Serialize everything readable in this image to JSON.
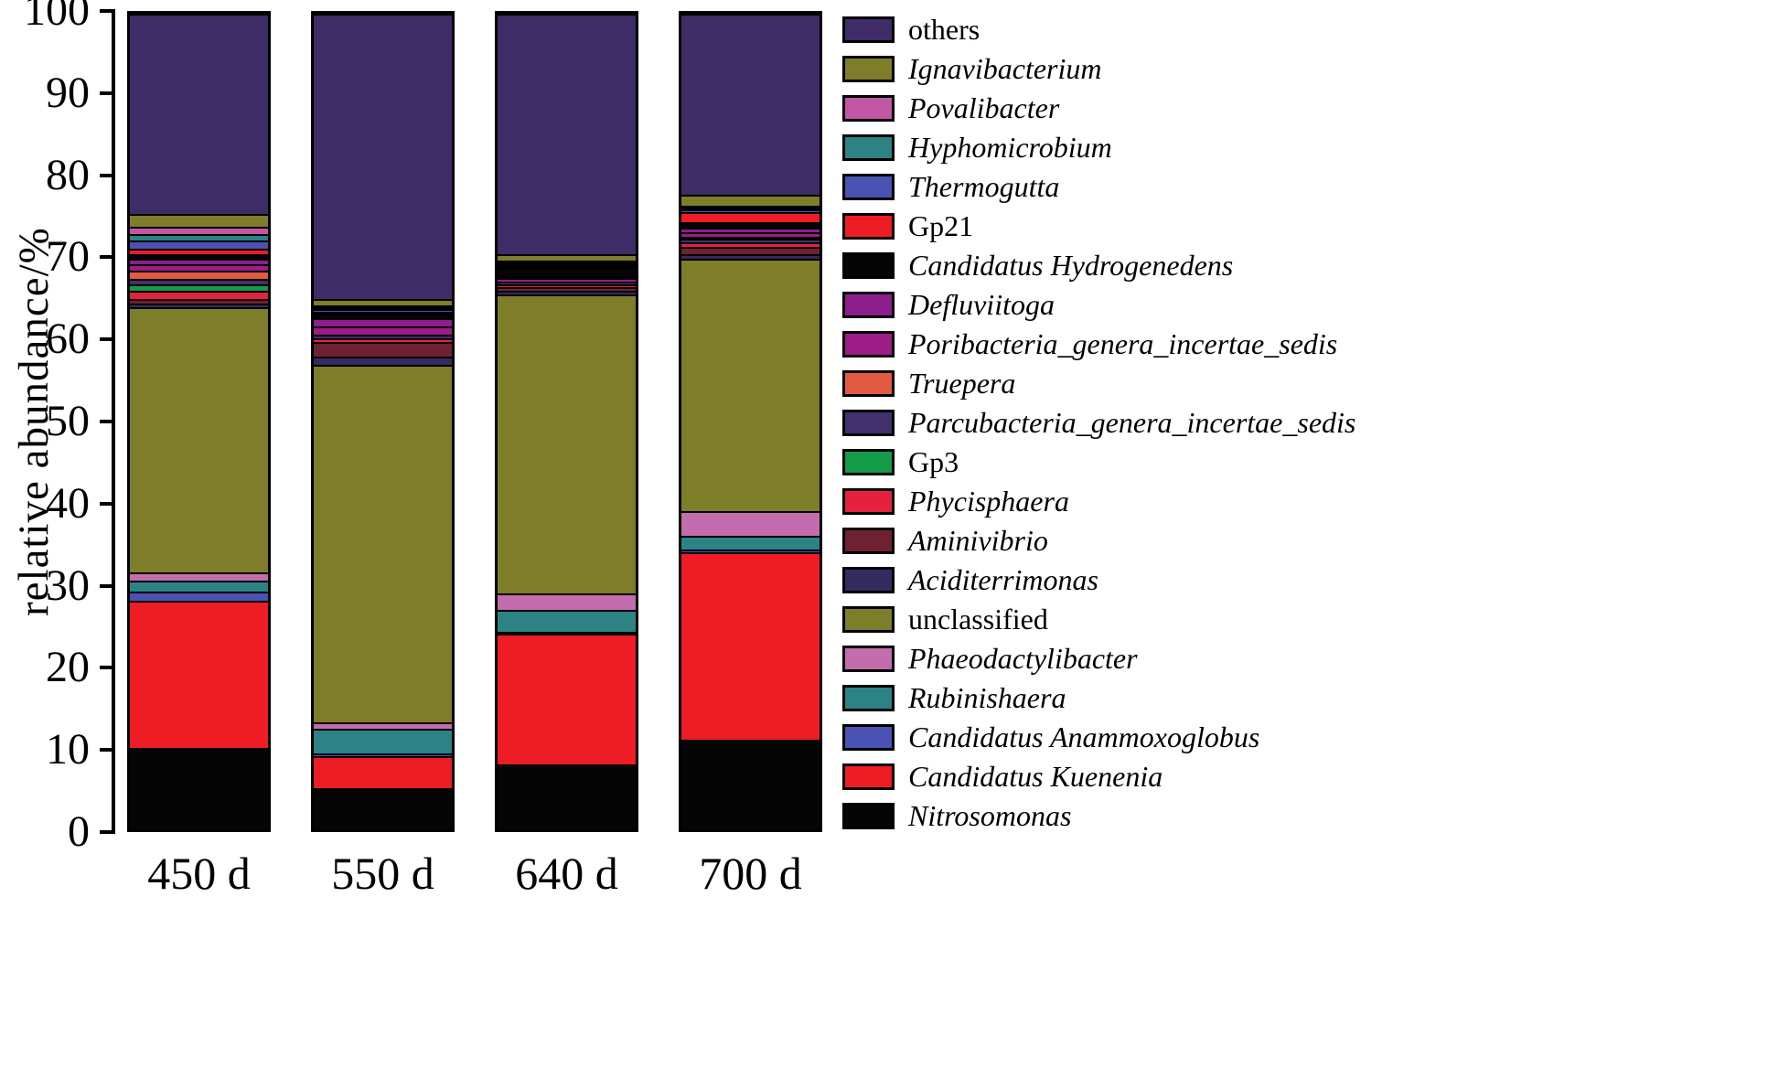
{
  "chart_data": {
    "type": "bar",
    "stacked": true,
    "title": "",
    "ylabel": "relative abundance/%",
    "xlabel": "",
    "ylim": [
      0,
      100
    ],
    "yticks": [
      0,
      10,
      20,
      30,
      40,
      50,
      60,
      70,
      80,
      90,
      100
    ],
    "grid": false,
    "legend_position": "right",
    "categories": [
      "450 d",
      "550 d",
      "640 d",
      "700 d"
    ],
    "series": [
      {
        "name": "Nitrosomonas",
        "color": "#050505",
        "italic": true,
        "values": [
          10.0,
          5.0,
          8.0,
          11.0
        ]
      },
      {
        "name": "Candidatus Kuenenia",
        "color": "#ee1c25",
        "italic": true,
        "values": [
          18.0,
          4.0,
          16.0,
          23.0
        ]
      },
      {
        "name": "Candidatus Anammoxoglobus",
        "color": "#4a52b4",
        "italic": true,
        "values": [
          1.2,
          0.3,
          0.3,
          0.3
        ]
      },
      {
        "name": "Rubinishaera",
        "color": "#2d8384",
        "italic": true,
        "values": [
          1.3,
          3.0,
          2.7,
          1.7
        ]
      },
      {
        "name": "Phaeodactylibacter",
        "color": "#c36dae",
        "italic": true,
        "values": [
          1.0,
          0.8,
          2.0,
          3.0
        ]
      },
      {
        "name": "unclassified",
        "color": "#7e7d2a",
        "italic": false,
        "values": [
          32.5,
          43.9,
          36.7,
          31.0
        ]
      },
      {
        "name": "Aciditerrimonas",
        "color": "#352b60",
        "italic": true,
        "values": [
          0.5,
          1.0,
          0.5,
          0.5
        ]
      },
      {
        "name": "Aminivibrio",
        "color": "#6e2231",
        "italic": true,
        "values": [
          0.5,
          1.8,
          0.4,
          1.0
        ]
      },
      {
        "name": "Phycisphaera",
        "color": "#e4223f",
        "italic": true,
        "values": [
          1.0,
          0.4,
          0.3,
          0.5
        ]
      },
      {
        "name": "Gp3",
        "color": "#149b48",
        "italic": false,
        "values": [
          0.8,
          0.0,
          0.0,
          0.0
        ]
      },
      {
        "name": "Parcubacteria_genera_incertae_sedis",
        "color": "#42306e",
        "italic": true,
        "values": [
          0.7,
          0.5,
          0.4,
          0.4
        ]
      },
      {
        "name": "Truepera",
        "color": "#e25a41",
        "italic": true,
        "values": [
          1.0,
          0.0,
          0.0,
          0.2
        ]
      },
      {
        "name": "Poribacteria_genera_incertae_sedis",
        "color": "#9c1d86",
        "italic": true,
        "values": [
          0.8,
          1.0,
          0.4,
          0.6
        ]
      },
      {
        "name": "Defluviitoga",
        "color": "#8c1f8c",
        "italic": true,
        "values": [
          0.7,
          1.0,
          0.3,
          0.6
        ]
      },
      {
        "name": "Candidatus Hydrogenedens",
        "color": "#050505",
        "italic": true,
        "values": [
          0.5,
          0.6,
          1.0,
          0.7
        ]
      },
      {
        "name": "Gp21",
        "color": "#ee1c25",
        "italic": false,
        "values": [
          0.7,
          0.2,
          0.2,
          1.2
        ]
      },
      {
        "name": "Thermogutta",
        "color": "#4a52b4",
        "italic": true,
        "values": [
          1.0,
          0.3,
          0.2,
          0.3
        ]
      },
      {
        "name": "Hyphomicrobium",
        "color": "#2d8384",
        "italic": true,
        "values": [
          0.8,
          0.2,
          0.1,
          0.2
        ]
      },
      {
        "name": "Povalibacter",
        "color": "#c257a6",
        "italic": true,
        "values": [
          0.9,
          0.2,
          0.2,
          0.3
        ]
      },
      {
        "name": "Ignavibacterium",
        "color": "#7e7d2a",
        "italic": true,
        "values": [
          1.6,
          0.8,
          0.8,
          1.3
        ]
      },
      {
        "name": "others",
        "color": "#3e2c66",
        "italic": false,
        "values": [
          24.5,
          35.0,
          29.5,
          22.2
        ]
      }
    ]
  }
}
